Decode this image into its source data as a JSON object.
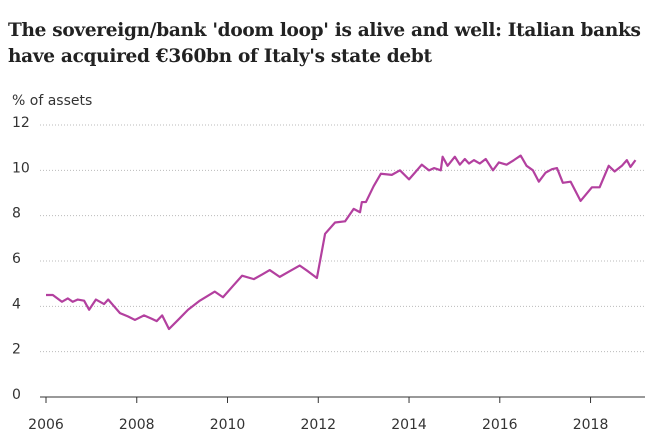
{
  "chart_data": {
    "type": "line",
    "title": "The sovereign/bank 'doom loop' is alive and well: Italian banks have acquired €360bn of Italy's state debt",
    "y_label": "% of assets",
    "x": [
      2006.0,
      2006.15,
      2006.35,
      2006.48,
      2006.59,
      2006.7,
      2006.84,
      2006.95,
      2007.1,
      2007.28,
      2007.37,
      2007.5,
      2007.63,
      2007.81,
      2007.96,
      2008.16,
      2008.33,
      2008.44,
      2008.56,
      2008.71,
      2008.91,
      2009.13,
      2009.39,
      2009.72,
      2009.9,
      2010.12,
      2010.32,
      2010.58,
      2010.76,
      2010.93,
      2011.15,
      2011.37,
      2011.59,
      2011.77,
      2011.97,
      2012.15,
      2012.37,
      2012.59,
      2012.78,
      2012.92,
      2012.96,
      2013.05,
      2013.22,
      2013.38,
      2013.62,
      2013.8,
      2014.0,
      2014.13,
      2014.28,
      2014.44,
      2014.55,
      2014.7,
      2014.74,
      2014.85,
      2015.01,
      2015.12,
      2015.23,
      2015.32,
      2015.43,
      2015.56,
      2015.69,
      2015.85,
      2015.98,
      2016.15,
      2016.31,
      2016.46,
      2016.59,
      2016.73,
      2016.86,
      2017.01,
      2017.15,
      2017.26,
      2017.39,
      2017.56,
      2017.78,
      2018.03,
      2018.2,
      2018.4,
      2018.53,
      2018.69,
      2018.8,
      2018.88,
      2018.99
    ],
    "series": [
      {
        "name": "% of assets",
        "color": "#b3409f",
        "values": [
          4.5,
          4.5,
          4.2,
          4.35,
          4.2,
          4.3,
          4.25,
          3.85,
          4.3,
          4.1,
          4.3,
          4.0,
          3.7,
          3.55,
          3.4,
          3.6,
          3.45,
          3.35,
          3.6,
          3.0,
          3.4,
          3.85,
          4.25,
          4.65,
          4.4,
          4.9,
          5.35,
          5.2,
          5.4,
          5.6,
          5.3,
          5.55,
          5.8,
          5.55,
          5.25,
          7.2,
          7.7,
          7.75,
          8.3,
          8.15,
          8.6,
          8.6,
          9.3,
          9.85,
          9.8,
          10.0,
          9.6,
          9.9,
          10.25,
          10.0,
          10.1,
          10.0,
          10.6,
          10.2,
          10.6,
          10.25,
          10.5,
          10.3,
          10.45,
          10.3,
          10.5,
          10.0,
          10.35,
          10.25,
          10.45,
          10.65,
          10.2,
          10.0,
          9.5,
          9.9,
          10.05,
          10.1,
          9.45,
          9.5,
          8.65,
          9.25,
          9.25,
          10.2,
          9.95,
          10.2,
          10.45,
          10.15,
          10.45
        ]
      }
    ],
    "xlim": [
      2006,
      2019.2
    ],
    "xticks": [
      2006,
      2008,
      2010,
      2012,
      2014,
      2016,
      2018
    ],
    "ylim": [
      0,
      12
    ],
    "yticks": [
      0,
      2,
      4,
      6,
      8,
      10,
      12
    ],
    "grid": true
  }
}
